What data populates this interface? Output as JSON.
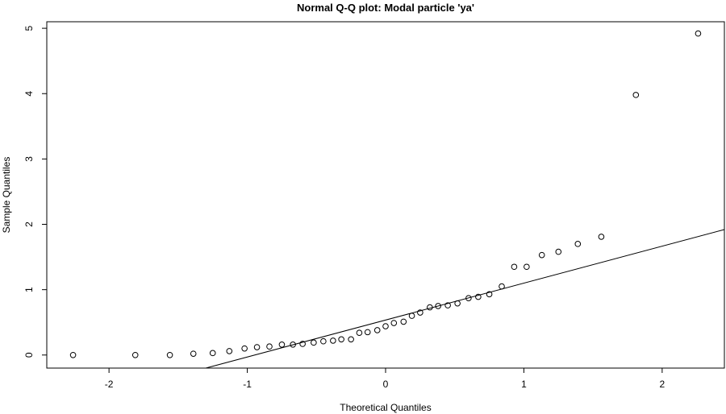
{
  "chart_data": {
    "type": "scatter",
    "title": "Normal Q-Q plot: Modal particle 'ya'",
    "xlabel": "Theoretical Quantiles",
    "ylabel": "Sample Quantiles",
    "xlim": [
      -2.45,
      2.45
    ],
    "ylim": [
      -0.2,
      5.1
    ],
    "x_ticks": [
      -2,
      -1,
      0,
      1,
      2
    ],
    "y_ticks": [
      0,
      1,
      2,
      3,
      4,
      5
    ],
    "grid": false,
    "reference_line": {
      "x": [
        -1.3,
        2.45
      ],
      "y": [
        -0.2,
        1.92
      ]
    },
    "points": [
      [
        -2.26,
        0.0
      ],
      [
        -1.81,
        0.0
      ],
      [
        -1.56,
        0.0
      ],
      [
        -1.39,
        0.02
      ],
      [
        -1.25,
        0.03
      ],
      [
        -1.13,
        0.06
      ],
      [
        -1.02,
        0.1
      ],
      [
        -0.93,
        0.12
      ],
      [
        -0.84,
        0.13
      ],
      [
        -0.75,
        0.16
      ],
      [
        -0.67,
        0.16
      ],
      [
        -0.6,
        0.17
      ],
      [
        -0.52,
        0.19
      ],
      [
        -0.45,
        0.21
      ],
      [
        -0.38,
        0.22
      ],
      [
        -0.32,
        0.24
      ],
      [
        -0.25,
        0.24
      ],
      [
        -0.19,
        0.34
      ],
      [
        -0.13,
        0.35
      ],
      [
        -0.06,
        0.38
      ],
      [
        0.0,
        0.44
      ],
      [
        0.06,
        0.49
      ],
      [
        0.13,
        0.51
      ],
      [
        0.19,
        0.6
      ],
      [
        0.25,
        0.65
      ],
      [
        0.32,
        0.73
      ],
      [
        0.38,
        0.75
      ],
      [
        0.45,
        0.76
      ],
      [
        0.52,
        0.79
      ],
      [
        0.6,
        0.87
      ],
      [
        0.67,
        0.89
      ],
      [
        0.75,
        0.93
      ],
      [
        0.84,
        1.05
      ],
      [
        0.93,
        1.35
      ],
      [
        1.02,
        1.35
      ],
      [
        1.13,
        1.53
      ],
      [
        1.25,
        1.58
      ],
      [
        1.39,
        1.7
      ],
      [
        1.56,
        1.81
      ],
      [
        1.81,
        3.98
      ],
      [
        2.26,
        4.92
      ]
    ]
  }
}
